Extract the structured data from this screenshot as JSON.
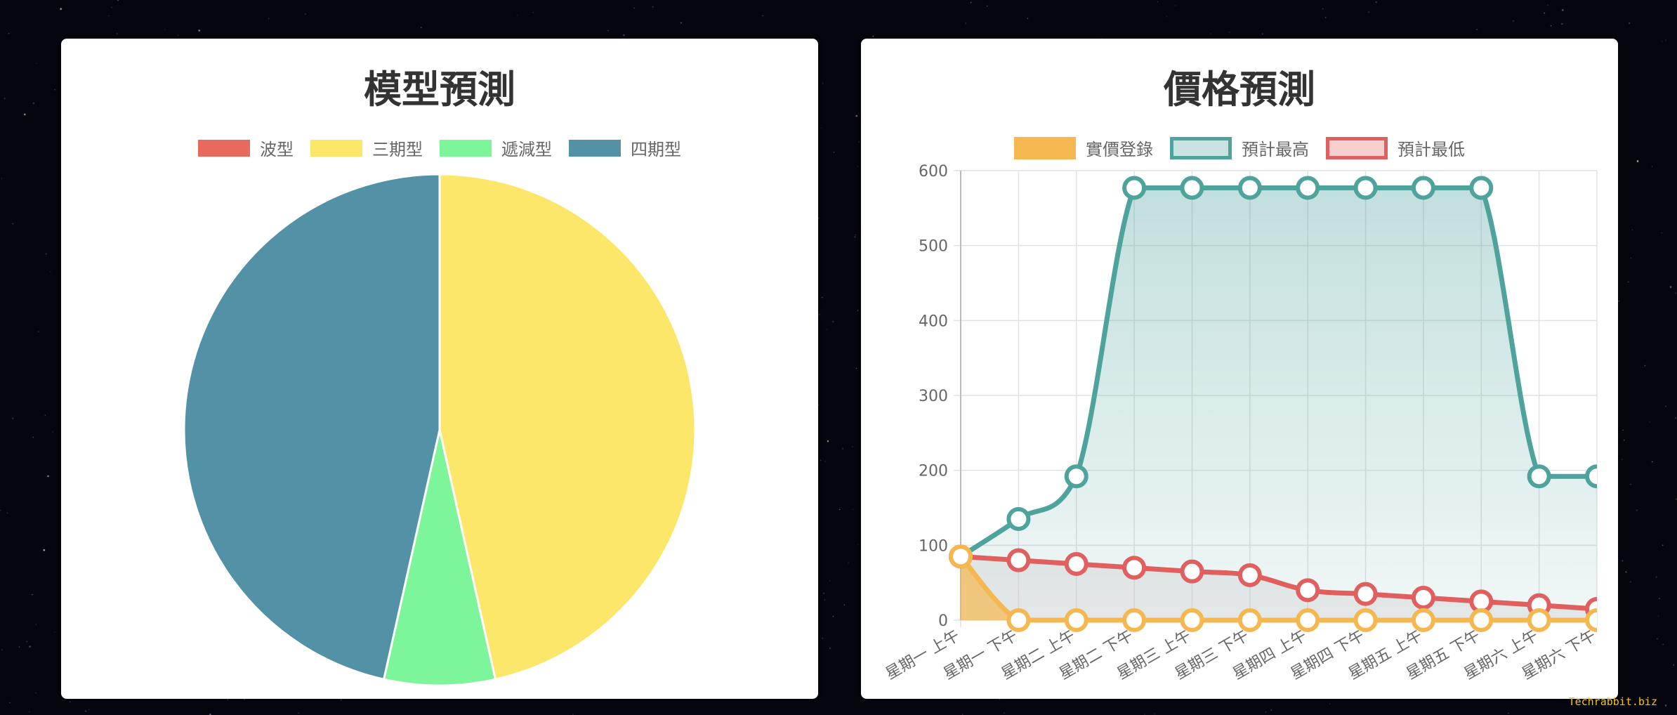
{
  "chart_data": [
    {
      "type": "pie",
      "title": "模型預測",
      "categories": [
        "波型",
        "三期型",
        "遞減型",
        "四期型"
      ],
      "values": [
        0,
        46.5,
        7.0,
        46.5
      ],
      "colors": [
        "#e8695d",
        "#fde76a",
        "#7df59a",
        "#5392a6"
      ],
      "legend": "top"
    },
    {
      "type": "line",
      "title": "價格預測",
      "categories": [
        "星期一 上午",
        "星期一 下午",
        "星期二 上午",
        "星期二 下午",
        "星期三 上午",
        "星期三 下午",
        "星期四 上午",
        "星期四 下午",
        "星期五 上午",
        "星期五 下午",
        "星期六 上午",
        "星期六 下午"
      ],
      "ylim": [
        0,
        600
      ],
      "yticks": [
        0,
        100,
        200,
        300,
        400,
        500,
        600
      ],
      "grid": true,
      "legend": "top",
      "series": [
        {
          "name": "實價登錄",
          "values": [
            85,
            0,
            0,
            0,
            0,
            0,
            0,
            0,
            0,
            0,
            0,
            0
          ],
          "color": "#f5b850"
        },
        {
          "name": "預計最高",
          "values": [
            85,
            135,
            192,
            577,
            577,
            577,
            577,
            577,
            577,
            577,
            192,
            192
          ],
          "color": "#4fa39d"
        },
        {
          "name": "預計最低",
          "values": [
            85,
            80,
            75,
            70,
            65,
            60,
            40,
            35,
            30,
            25,
            20,
            15
          ],
          "color": "#e06060"
        }
      ]
    }
  ],
  "watermark": "Techrabbit.biz"
}
